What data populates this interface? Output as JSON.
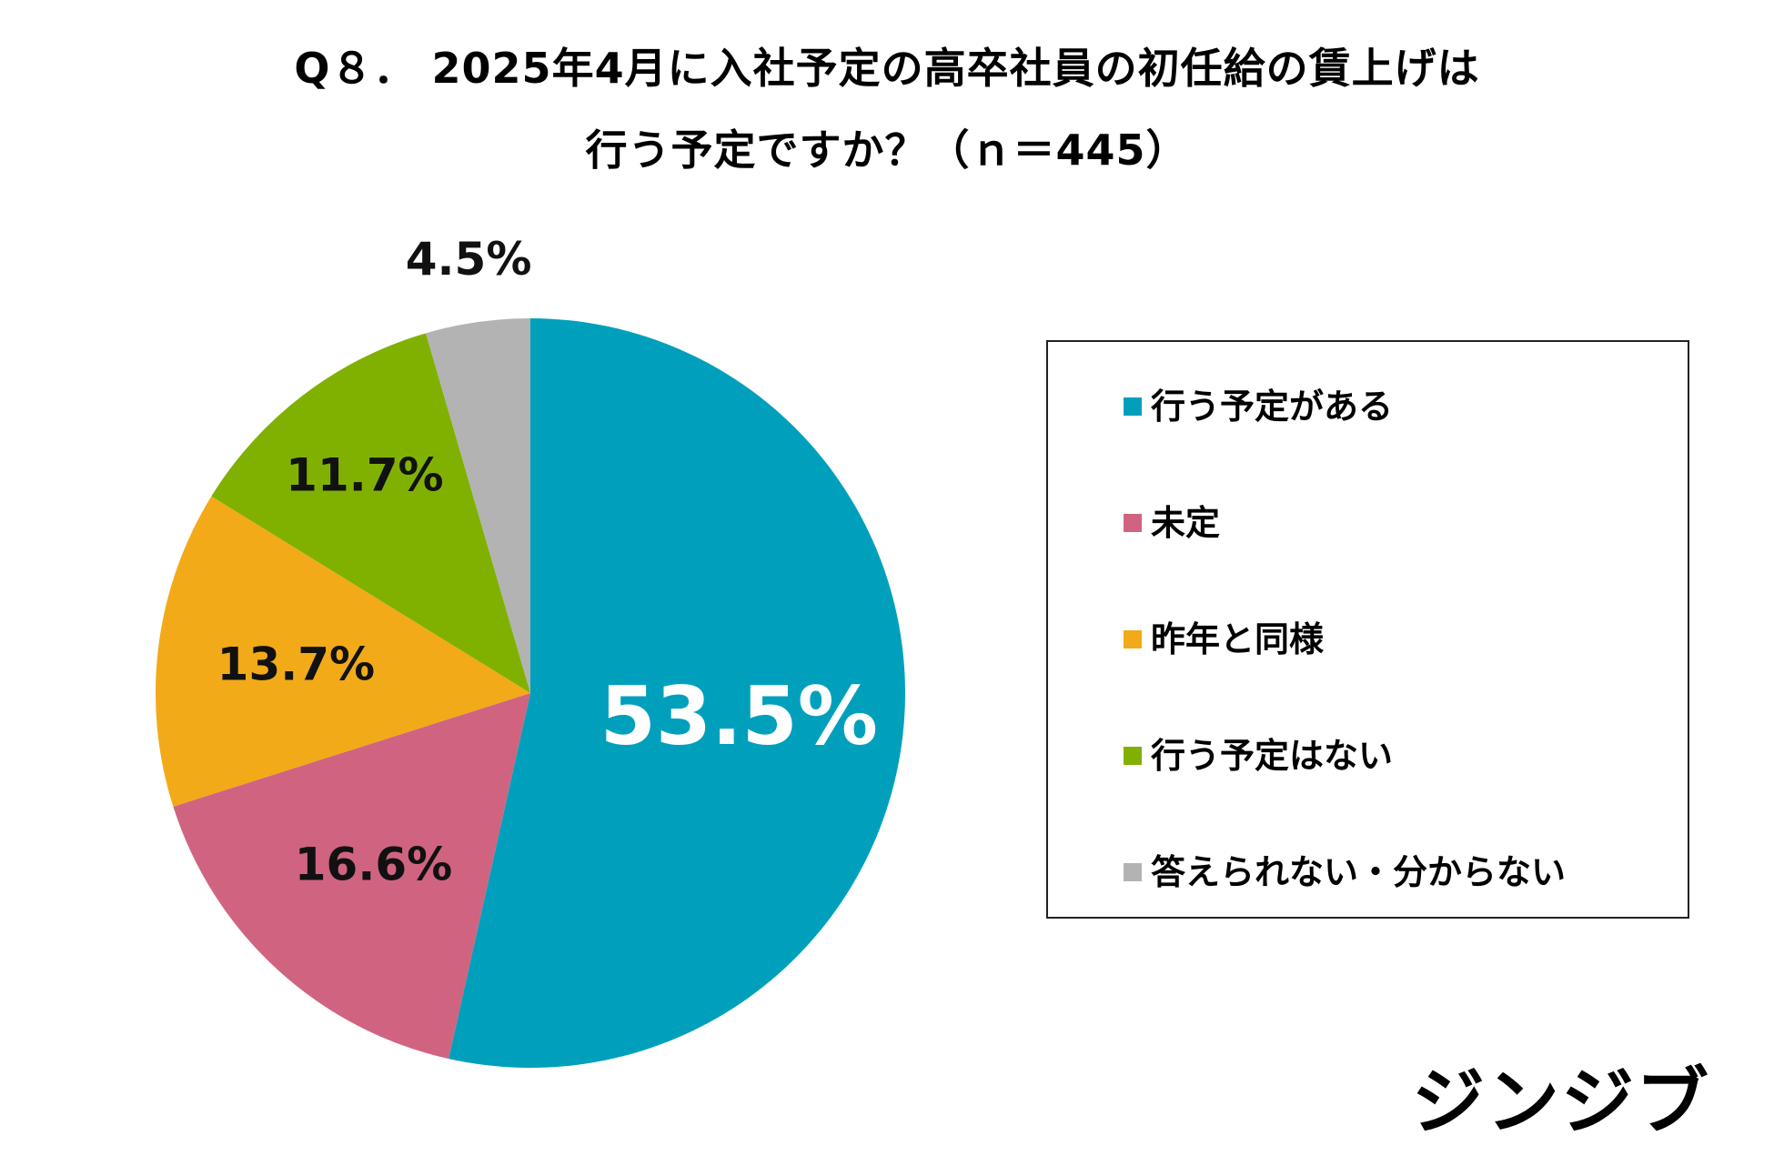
{
  "chart_data": {
    "type": "pie",
    "title_line1": "Q８． 2025年4月に入社予定の高卒社員の初任給の賃上げは",
    "title_line2": "行う予定ですか？（ｎ＝445）",
    "slices": [
      {
        "label": "行う予定がある",
        "value": 53.5,
        "value_label": "53.5%",
        "color": "#00a0bd",
        "label_color": "#ffffff"
      },
      {
        "label": "未定",
        "value": 16.6,
        "value_label": "16.6%",
        "color": "#d06480",
        "label_color": "#111111"
      },
      {
        "label": "昨年と同様",
        "value": 13.7,
        "value_label": "13.7%",
        "color": "#f2aa18",
        "label_color": "#111111"
      },
      {
        "label": "行う予定はない",
        "value": 11.7,
        "value_label": "11.7%",
        "color": "#80b100",
        "label_color": "#111111"
      },
      {
        "label": "答えられない・分からない",
        "value": 4.5,
        "value_label": "4.5%",
        "color": "#b3b3b3",
        "label_color": "#111111"
      }
    ],
    "start": "12 o'clock",
    "direction": "clockwise",
    "legend_position": "right"
  },
  "brand": "ジンジブ"
}
